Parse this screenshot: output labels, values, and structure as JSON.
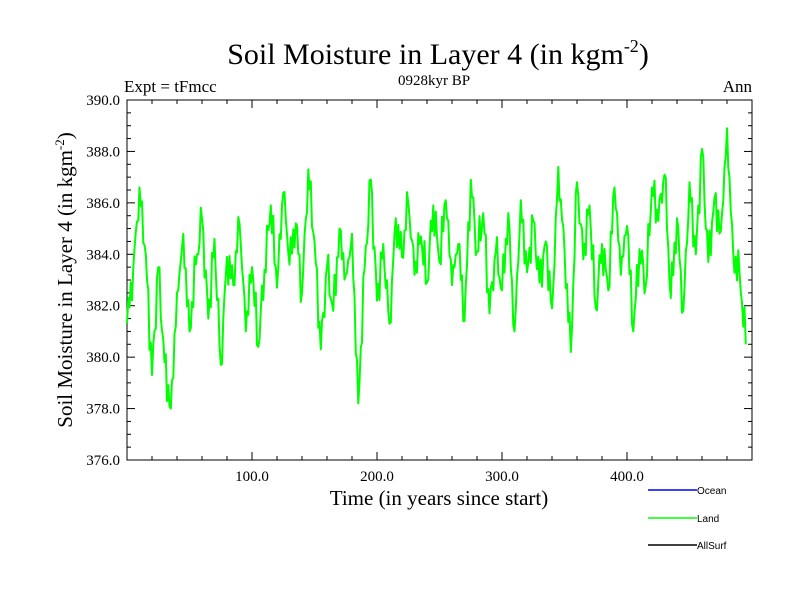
{
  "chart_data": {
    "type": "line",
    "title": "Soil Moisture in Layer 4 (in kgm",
    "title_sup": "-2",
    "title_end": ")",
    "subtitle": "0928kyr BP",
    "left_label": "Expt = tFmcc",
    "right_label": "Ann",
    "xlabel": "Time (in years since start)",
    "ylabel": "Soil Moisture in Layer 4 (in kgm",
    "ylabel_sup": "-2",
    "ylabel_end": ")",
    "xlim": [
      0,
      500
    ],
    "ylim": [
      376,
      390
    ],
    "x_ticks": [
      100,
      200,
      300,
      400
    ],
    "x_tick_labels": [
      "100.0",
      "200.0",
      "300.0",
      "400.0"
    ],
    "y_ticks": [
      376,
      378,
      380,
      382,
      384,
      386,
      388,
      390
    ],
    "y_tick_labels": [
      "376.0",
      "378.0",
      "380.0",
      "382.0",
      "384.0",
      "386.0",
      "388.0",
      "390.0"
    ],
    "legend": [
      {
        "name": "Ocean",
        "color": "#0000ff"
      },
      {
        "name": "Land",
        "color": "#00ff00"
      },
      {
        "name": "AllSurf",
        "color": "#000000"
      }
    ],
    "series": [
      {
        "name": "Land",
        "color": "#00ff00",
        "x": [
          0,
          5,
          10,
          15,
          20,
          25,
          30,
          35,
          40,
          45,
          50,
          55,
          60,
          65,
          70,
          75,
          80,
          85,
          90,
          95,
          100,
          105,
          110,
          115,
          120,
          125,
          130,
          135,
          140,
          145,
          150,
          155,
          160,
          165,
          170,
          175,
          180,
          185,
          190,
          195,
          200,
          205,
          210,
          215,
          220,
          225,
          230,
          235,
          240,
          245,
          250,
          255,
          260,
          265,
          270,
          275,
          280,
          285,
          290,
          295,
          300,
          305,
          310,
          315,
          320,
          325,
          330,
          335,
          340,
          345,
          350,
          355,
          360,
          365,
          370,
          375,
          380,
          385,
          390,
          395,
          400,
          405,
          410,
          415,
          420,
          425,
          430,
          435,
          440,
          445,
          450,
          455,
          460,
          465,
          470,
          475,
          480,
          485,
          490,
          495
        ],
        "values": [
          381.3,
          383.5,
          386.6,
          384.0,
          379.3,
          383.5,
          379.8,
          378.0,
          382.5,
          384.8,
          381.0,
          383.6,
          385.4,
          381.5,
          384.6,
          379.7,
          383.9,
          382.8,
          385.2,
          381.0,
          383.5,
          380.4,
          383.4,
          385.9,
          382.7,
          386.4,
          383.6,
          385.2,
          382.5,
          387.3,
          384.5,
          380.3,
          383.5,
          381.8,
          385.0,
          383.2,
          384.8,
          378.2,
          383.4,
          386.9,
          382.2,
          384.4,
          381.3,
          385.4,
          383.9,
          386.0,
          383.2,
          384.7,
          382.9,
          385.9,
          383.7,
          386.1,
          382.8,
          384.4,
          381.4,
          386.9,
          384.1,
          385.6,
          381.7,
          384.1,
          382.6,
          385.6,
          381.0,
          386.1,
          383.3,
          385.3,
          382.9,
          384.5,
          381.9,
          387.4,
          384.2,
          380.2,
          386.8,
          383.8,
          385.9,
          381.9,
          384.4,
          382.6,
          386.6,
          383.2,
          385.1,
          381.0,
          384.2,
          382.8,
          386.6,
          385.3,
          387.1,
          382.3,
          385.4,
          381.8,
          386.8,
          384.0,
          388.1,
          383.7,
          386.2,
          384.9,
          388.9,
          384.0,
          383.3,
          380.5
        ]
      }
    ]
  }
}
